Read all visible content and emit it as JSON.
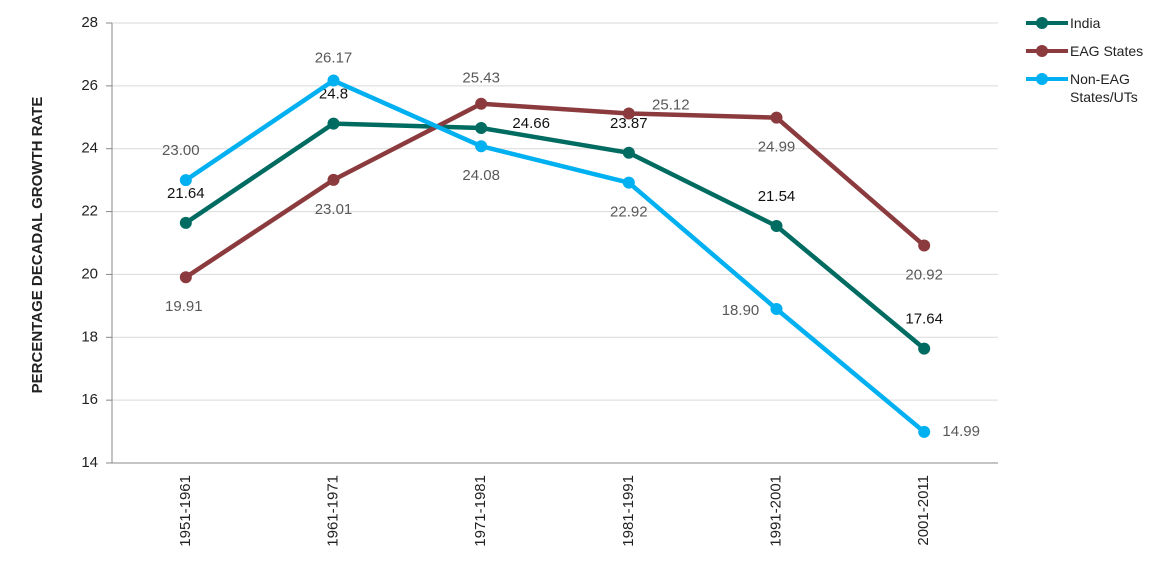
{
  "chart_data": {
    "type": "line",
    "y_label": "PERCENTAGE DECADAL GROWTH RATE",
    "categories": [
      "1951-1961",
      "1961-1971",
      "1971-1981",
      "1981-1991",
      "1991-2001",
      "2001-2011"
    ],
    "series": [
      {
        "name": "India",
        "color": "#006b61",
        "values": [
          21.64,
          24.8,
          24.66,
          23.87,
          21.54,
          17.64
        ]
      },
      {
        "name": "EAG States",
        "color": "#8b3a3d",
        "values": [
          19.91,
          23.01,
          25.43,
          25.12,
          24.99,
          20.92
        ]
      },
      {
        "name": "Non-EAG States/UTs",
        "color": "#00b0f0",
        "values": [
          23.0,
          26.17,
          24.08,
          22.92,
          18.9,
          14.99
        ],
        "value_labels": [
          "23.00",
          "26.17",
          "24.08",
          "22.92",
          "18.90",
          "14.99"
        ]
      }
    ],
    "ylim": [
      14,
      28
    ],
    "yticks": [
      14,
      16,
      18,
      20,
      22,
      24,
      26,
      28
    ],
    "grid": true,
    "legend": "top-right"
  }
}
